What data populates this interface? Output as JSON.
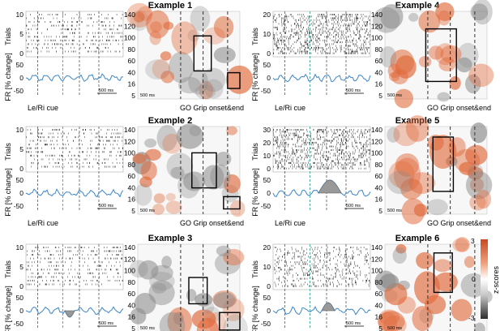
{
  "figure": {
    "examples": [
      {
        "title": "Example 1",
        "trials_ticks": [
          "10",
          "5",
          "0"
        ],
        "fr_ticks": [
          "50",
          "0",
          "-50"
        ],
        "heat_ticks": [
          "140",
          "120",
          "100",
          "80",
          "60",
          "40",
          "16",
          "5"
        ],
        "scalebar": "500 ms",
        "bump": "none",
        "box_count": 2
      },
      {
        "title": "Example 4",
        "trials_ticks": [
          "20",
          "10",
          "0"
        ],
        "fr_ticks": [
          "50",
          "0",
          "-50"
        ],
        "heat_ticks": [
          "140",
          "120",
          "100",
          "80",
          "60",
          "40",
          "16",
          "5"
        ],
        "scalebar": "500 ms",
        "bump": "none",
        "box_count": 1
      },
      {
        "title": "Example 2",
        "trials_ticks": [
          "10",
          "5",
          "0"
        ],
        "fr_ticks": [
          "50",
          "0",
          "-50"
        ],
        "heat_ticks": [
          "140",
          "120",
          "100",
          "80",
          "60",
          "40",
          "16",
          "5"
        ],
        "scalebar": "500 ms",
        "bump": "none",
        "box_count": 2
      },
      {
        "title": "Example 5",
        "trials_ticks": [
          "30",
          "20",
          "10",
          "0"
        ],
        "fr_ticks": [
          "50",
          "0",
          "-50"
        ],
        "heat_ticks": [
          "140",
          "120",
          "100",
          "80",
          "60",
          "40",
          "16",
          "5"
        ],
        "scalebar": "500 ms",
        "bump": "large",
        "box_count": 1
      },
      {
        "title": "Example 3",
        "trials_ticks": [
          "10",
          "5",
          "0"
        ],
        "fr_ticks": [
          "50",
          "0",
          "-50"
        ],
        "heat_ticks": [
          "140",
          "120",
          "100",
          "80",
          "60",
          "40",
          "16",
          "5"
        ],
        "scalebar": "500 ms",
        "bump": "dip",
        "box_count": 2
      },
      {
        "title": "Example 6",
        "trials_ticks": [
          "20",
          "10",
          "0"
        ],
        "fr_ticks": [
          "50",
          "0",
          "-50"
        ],
        "heat_ticks": [
          "140",
          "120",
          "100",
          "80",
          "60",
          "40",
          "16",
          "5"
        ],
        "scalebar": "500 ms",
        "bump": "small",
        "box_count": 1
      }
    ],
    "axis_labels": {
      "trials": "Trials",
      "fr": "FR [% change]",
      "event_left": "Le/Ri cue",
      "event_right": "GO Grip onset&end"
    },
    "colorbar": {
      "label": "z-scores",
      "ticks": [
        "3",
        "0",
        "-3"
      ]
    },
    "colors": {
      "positive": "#d4542a",
      "negative": "#555555",
      "trace": "#3a86c8",
      "go_line": "#2a9d8f"
    }
  }
}
